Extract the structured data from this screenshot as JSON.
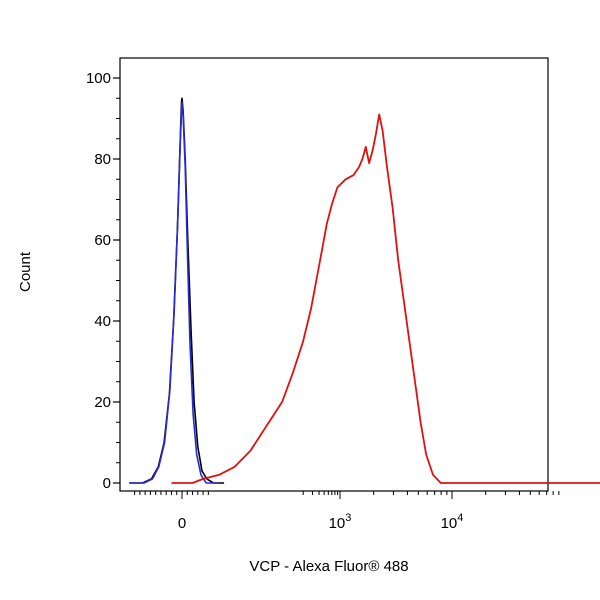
{
  "chart_data": {
    "type": "line",
    "title": "",
    "xlabel": "VCP - Alexa Fluor® 488",
    "ylabel": "Count",
    "ylim": [
      0,
      100
    ],
    "y_ticks": [
      0,
      20,
      40,
      60,
      80,
      100
    ],
    "y_tick_labels": [
      "0",
      "20",
      "40",
      "60",
      "80",
      "100"
    ],
    "x_scale": "biexponential",
    "x_tick_labels": [
      {
        "base": "0",
        "exp": ""
      },
      {
        "base": "10",
        "exp": "3"
      },
      {
        "base": "10",
        "exp": "4"
      }
    ],
    "grid": false,
    "colors": {
      "black": "#000000",
      "blue": "#2a2ad8",
      "red": "#e01010"
    },
    "series": [
      {
        "color": "#000000",
        "points": [
          [
            -1.0,
            0
          ],
          [
            -0.75,
            0
          ],
          [
            -0.58,
            1
          ],
          [
            -0.45,
            4
          ],
          [
            -0.34,
            10
          ],
          [
            -0.24,
            22
          ],
          [
            -0.16,
            40
          ],
          [
            -0.09,
            62
          ],
          [
            -0.04,
            82
          ],
          [
            -0.01,
            94
          ],
          [
            0.0,
            95
          ],
          [
            0.02,
            92
          ],
          [
            0.06,
            80
          ],
          [
            0.11,
            60
          ],
          [
            0.17,
            38
          ],
          [
            0.23,
            20
          ],
          [
            0.3,
            9
          ],
          [
            0.38,
            3
          ],
          [
            0.47,
            1
          ],
          [
            0.6,
            0
          ],
          [
            0.8,
            0
          ]
        ]
      },
      {
        "color": "#2a2ad8",
        "points": [
          [
            -1.0,
            0
          ],
          [
            -0.72,
            0
          ],
          [
            -0.56,
            1
          ],
          [
            -0.44,
            4
          ],
          [
            -0.33,
            10
          ],
          [
            -0.23,
            23
          ],
          [
            -0.15,
            42
          ],
          [
            -0.08,
            65
          ],
          [
            -0.03,
            85
          ],
          [
            0.0,
            94
          ],
          [
            0.02,
            91
          ],
          [
            0.06,
            78
          ],
          [
            0.1,
            58
          ],
          [
            0.15,
            35
          ],
          [
            0.21,
            17
          ],
          [
            0.28,
            7
          ],
          [
            0.36,
            2
          ],
          [
            0.46,
            0
          ],
          [
            0.7,
            0
          ]
        ]
      },
      {
        "color": "#e01010",
        "points": [
          [
            -0.2,
            0
          ],
          [
            0.2,
            0
          ],
          [
            0.4,
            1
          ],
          [
            0.7,
            2
          ],
          [
            1.0,
            4
          ],
          [
            1.3,
            8
          ],
          [
            1.6,
            14
          ],
          [
            1.9,
            20
          ],
          [
            2.1,
            27
          ],
          [
            2.3,
            35
          ],
          [
            2.45,
            43
          ],
          [
            2.55,
            50
          ],
          [
            2.65,
            57
          ],
          [
            2.75,
            64
          ],
          [
            2.85,
            69
          ],
          [
            2.95,
            73
          ],
          [
            3.05,
            75
          ],
          [
            3.12,
            76
          ],
          [
            3.17,
            78
          ],
          [
            3.2,
            80
          ],
          [
            3.23,
            83
          ],
          [
            3.26,
            79
          ],
          [
            3.29,
            82
          ],
          [
            3.32,
            86
          ],
          [
            3.35,
            91
          ],
          [
            3.38,
            87
          ],
          [
            3.42,
            78
          ],
          [
            3.47,
            68
          ],
          [
            3.52,
            55
          ],
          [
            3.57,
            45
          ],
          [
            3.62,
            35
          ],
          [
            3.67,
            25
          ],
          [
            3.72,
            15
          ],
          [
            3.77,
            7
          ],
          [
            3.83,
            2
          ],
          [
            3.9,
            0
          ],
          [
            4.2,
            0
          ],
          [
            5.8,
            0
          ]
        ]
      }
    ]
  }
}
